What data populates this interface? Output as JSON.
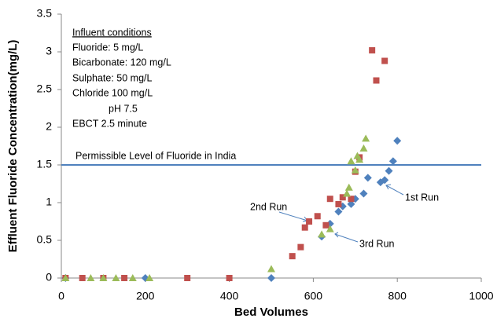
{
  "chart_data": {
    "type": "scatter",
    "x_label": "Bed Volumes",
    "y_label": "Effluent Fluoride Concentration(mg/L)",
    "xlim": [
      0,
      1000
    ],
    "xticks": [
      0,
      200,
      400,
      600,
      800,
      1000
    ],
    "ylim": [
      0,
      3.5
    ],
    "yticks": [
      0,
      0.5,
      1,
      1.5,
      2,
      2.5,
      3,
      3.5
    ],
    "reference_line": {
      "value": 1.5,
      "label": "Permissible Level of Fluoride in India",
      "color": "#4f81bd"
    },
    "conditions": {
      "title": "Influent conditions",
      "lines": [
        "Fluoride: 5 mg/L",
        "Bicarbonate:  120 mg/L",
        "Sulphate: 50 mg/L",
        "Chloride 100 mg/L",
        "pH 7.5",
        "EBCT 2.5 minute"
      ]
    },
    "series": [
      {
        "name": "1st Run",
        "color": "#4f81bd",
        "marker": "diamond",
        "x": [
          10,
          200,
          500,
          620,
          640,
          660,
          670,
          690,
          700,
          720,
          730,
          760,
          770,
          780,
          790,
          800
        ],
        "values": [
          0,
          0,
          0,
          0.55,
          0.72,
          0.88,
          0.95,
          0.98,
          1.05,
          1.12,
          1.33,
          1.27,
          1.3,
          1.42,
          1.55,
          1.82
        ]
      },
      {
        "name": "2nd Run",
        "color": "#c0504d",
        "marker": "square",
        "x": [
          10,
          50,
          100,
          150,
          300,
          400,
          550,
          570,
          580,
          590,
          610,
          630,
          640,
          660,
          670,
          690,
          700,
          710,
          740,
          750,
          770
        ],
        "values": [
          0,
          0,
          0,
          0,
          0,
          0,
          0.29,
          0.41,
          0.67,
          0.75,
          0.82,
          0.7,
          1.05,
          0.98,
          1.07,
          1.05,
          1.41,
          1.6,
          3.02,
          2.62,
          2.88
        ]
      },
      {
        "name": "3rd Run",
        "color": "#9bbb59",
        "marker": "triangle",
        "x": [
          10,
          70,
          100,
          130,
          170,
          210,
          500,
          620,
          640,
          680,
          685,
          690,
          700,
          705,
          710,
          720,
          725
        ],
        "values": [
          0,
          0,
          0,
          0,
          0,
          0,
          0.12,
          0.58,
          0.65,
          1.12,
          1.2,
          1.55,
          1.43,
          1.62,
          1.57,
          1.72,
          1.85
        ]
      }
    ]
  }
}
